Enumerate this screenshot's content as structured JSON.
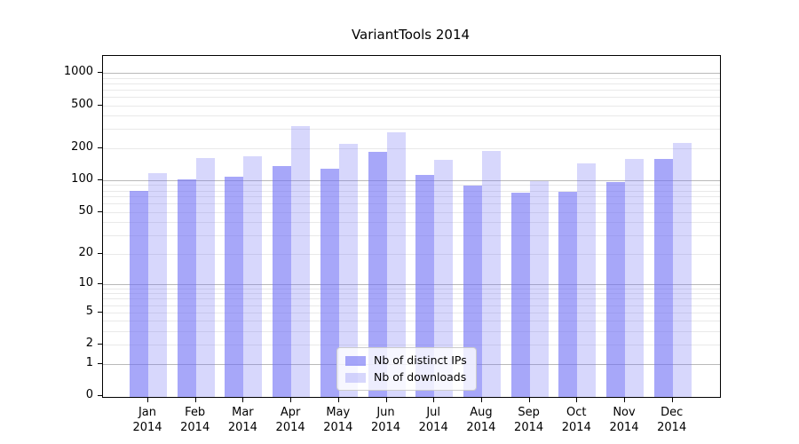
{
  "title": "VariantTools 2014",
  "colors": {
    "bar_distinct_ips": "#a8a8f8",
    "bar_downloads": "#d9d9fb",
    "bar_base_rgb": "108,108,245",
    "bar_alpha_ips": 0.6,
    "bar_alpha_downloads": 0.27,
    "grid_major": "#b9b9b9",
    "grid_minor": "#e9e9e9",
    "spine": "#000000"
  },
  "legend": {
    "position": "lower center"
  },
  "chart_data": {
    "type": "bar",
    "title": "VariantTools 2014",
    "categories": [
      "Jan",
      "Feb",
      "Mar",
      "Apr",
      "May",
      "Jun",
      "Jul",
      "Aug",
      "Sep",
      "Oct",
      "Nov",
      "Dec"
    ],
    "year": "2014",
    "series": [
      {
        "name": "Nb of distinct IPs",
        "values": [
          80,
          101,
          107,
          135,
          128,
          183,
          111,
          89,
          76,
          78,
          96,
          157
        ]
      },
      {
        "name": "Nb of downloads",
        "values": [
          116,
          160,
          167,
          320,
          217,
          282,
          155,
          187,
          98,
          143,
          157,
          222
        ]
      }
    ],
    "xlabel": "",
    "ylabel": "",
    "y_scale": "log1p",
    "y_ticks": [
      0,
      1,
      2,
      5,
      10,
      20,
      50,
      100,
      200,
      500,
      1000
    ],
    "ylim": [
      0,
      1435
    ],
    "grid": "major+minor horizontal",
    "legend_position": "lower center"
  }
}
